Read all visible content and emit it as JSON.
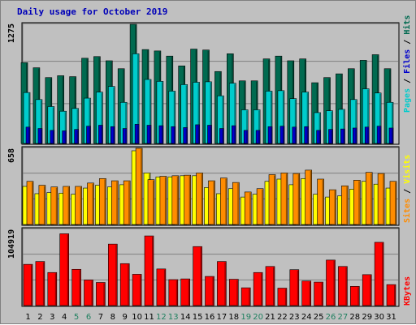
{
  "title": "Daily usage for October 2019",
  "colors": {
    "background": "#c0c0c0",
    "title": "#0000b8",
    "pages": "#00cccc",
    "files": "#0000cc",
    "hits": "#006a50",
    "visits": "#ffff00",
    "sites": "#ff8c00",
    "kbytes": "#ff0000",
    "weekend_day_label": "#208060",
    "weekday_label": "#000000"
  },
  "labels": {
    "hits_max": "1275",
    "visits_max": "658",
    "kbytes_max": "104919",
    "legend_hits_files_pages": [
      "Pages",
      "Files",
      "Hits"
    ],
    "legend_sites_visits": [
      "Sites",
      "Visits"
    ],
    "legend_kbytes": "KBytes"
  },
  "chart_data": [
    {
      "type": "bar",
      "name": "hits-files-pages",
      "ymax": 1275,
      "categories": [
        "1",
        "2",
        "3",
        "4",
        "5",
        "6",
        "7",
        "8",
        "9",
        "10",
        "11",
        "12",
        "13",
        "14",
        "15",
        "16",
        "17",
        "18",
        "19",
        "20",
        "21",
        "22",
        "23",
        "24",
        "25",
        "26",
        "27",
        "28",
        "29",
        "30",
        "31"
      ],
      "weekend": [
        false,
        false,
        false,
        false,
        true,
        true,
        false,
        false,
        false,
        false,
        false,
        true,
        true,
        false,
        false,
        false,
        false,
        false,
        true,
        true,
        false,
        false,
        false,
        false,
        false,
        true,
        true,
        false,
        false,
        false,
        false
      ],
      "series": [
        {
          "name": "Hits",
          "values": [
            865,
            810,
            705,
            725,
            715,
            912,
            930,
            885,
            800,
            1275,
            1005,
            990,
            935,
            830,
            1010,
            1000,
            770,
            960,
            670,
            670,
            905,
            935,
            885,
            905,
            650,
            705,
            745,
            800,
            890,
            950,
            800
          ]
        },
        {
          "name": "Files",
          "values": [
            175,
            160,
            140,
            135,
            150,
            185,
            195,
            180,
            160,
            205,
            195,
            190,
            180,
            170,
            200,
            195,
            160,
            190,
            140,
            140,
            180,
            185,
            175,
            180,
            140,
            150,
            155,
            165,
            175,
            185,
            165
          ]
        },
        {
          "name": "Pages",
          "values": [
            545,
            470,
            395,
            345,
            375,
            485,
            550,
            610,
            440,
            960,
            685,
            665,
            560,
            630,
            655,
            660,
            510,
            645,
            360,
            360,
            560,
            565,
            480,
            550,
            330,
            350,
            365,
            470,
            585,
            540,
            440
          ]
        }
      ]
    },
    {
      "type": "bar",
      "name": "visits-sites",
      "ymax": 658,
      "categories": [
        "1",
        "2",
        "3",
        "4",
        "5",
        "6",
        "7",
        "8",
        "9",
        "10",
        "11",
        "12",
        "13",
        "14",
        "15",
        "16",
        "17",
        "18",
        "19",
        "20",
        "21",
        "22",
        "23",
        "24",
        "25",
        "26",
        "27",
        "28",
        "29",
        "30",
        "31"
      ],
      "series": [
        {
          "name": "Visits",
          "values": [
            340,
            275,
            285,
            280,
            270,
            325,
            350,
            335,
            355,
            658,
            460,
            425,
            425,
            435,
            435,
            330,
            275,
            320,
            245,
            270,
            385,
            405,
            355,
            410,
            270,
            245,
            255,
            315,
            385,
            360,
            325
          ]
        },
        {
          "name": "Sites",
          "values": [
            385,
            350,
            335,
            340,
            340,
            370,
            410,
            390,
            390,
            680,
            400,
            430,
            435,
            440,
            460,
            390,
            415,
            375,
            290,
            320,
            445,
            460,
            455,
            485,
            405,
            310,
            345,
            395,
            465,
            455,
            385
          ]
        }
      ]
    },
    {
      "type": "bar",
      "name": "kbytes",
      "ymax": 104919,
      "categories": [
        "1",
        "2",
        "3",
        "4",
        "5",
        "6",
        "7",
        "8",
        "9",
        "10",
        "11",
        "12",
        "13",
        "14",
        "15",
        "16",
        "17",
        "18",
        "19",
        "20",
        "21",
        "22",
        "23",
        "24",
        "25",
        "26",
        "27",
        "28",
        "29",
        "30",
        "31"
      ],
      "series": [
        {
          "name": "KBytes",
          "values": [
            58000,
            62000,
            46500,
            101000,
            51000,
            36000,
            32500,
            86500,
            59000,
            44000,
            98000,
            51500,
            36500,
            37500,
            83000,
            41000,
            62000,
            37000,
            25000,
            46500,
            55000,
            24500,
            50500,
            34500,
            33000,
            64000,
            55000,
            27000,
            43500,
            89000,
            29500
          ]
        }
      ]
    }
  ]
}
